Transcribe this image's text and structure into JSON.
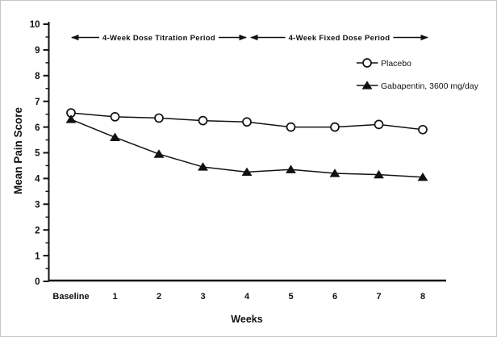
{
  "figure": {
    "background_color": "#ffffff",
    "ink_color": "#111111",
    "border_color": "#c6c6c6"
  },
  "chart_data": {
    "type": "line",
    "title": "",
    "xlabel": "Weeks",
    "ylabel": "Mean Pain Score",
    "categories": [
      "Baseline",
      "1",
      "2",
      "3",
      "4",
      "5",
      "6",
      "7",
      "8"
    ],
    "ylim": [
      0,
      10
    ],
    "y_major_tick_step": 1,
    "y_minor_tick_step": 0.5,
    "grid": false,
    "legend": {
      "position": "upper-right-inside"
    },
    "series": [
      {
        "name": "Placebo",
        "marker": "open-circle",
        "line_color": "#111111",
        "marker_fill": "#ffffff",
        "values": [
          6.55,
          6.4,
          6.35,
          6.25,
          6.2,
          6.0,
          6.0,
          6.1,
          5.9
        ]
      },
      {
        "name": "Gabapentin, 3600 mg/day",
        "marker": "filled-triangle",
        "line_color": "#111111",
        "marker_fill": "#111111",
        "values": [
          6.3,
          5.6,
          4.95,
          4.45,
          4.25,
          4.35,
          4.2,
          4.15,
          4.05
        ]
      }
    ],
    "annotations": [
      {
        "label": "4-Week Dose Titration Period",
        "from_category": "Baseline",
        "to_category": "4",
        "style": "double-headed-arrow"
      },
      {
        "label": "4-Week Fixed Dose Period",
        "from_category": "4",
        "to_category": "8",
        "style": "double-headed-arrow"
      }
    ]
  }
}
